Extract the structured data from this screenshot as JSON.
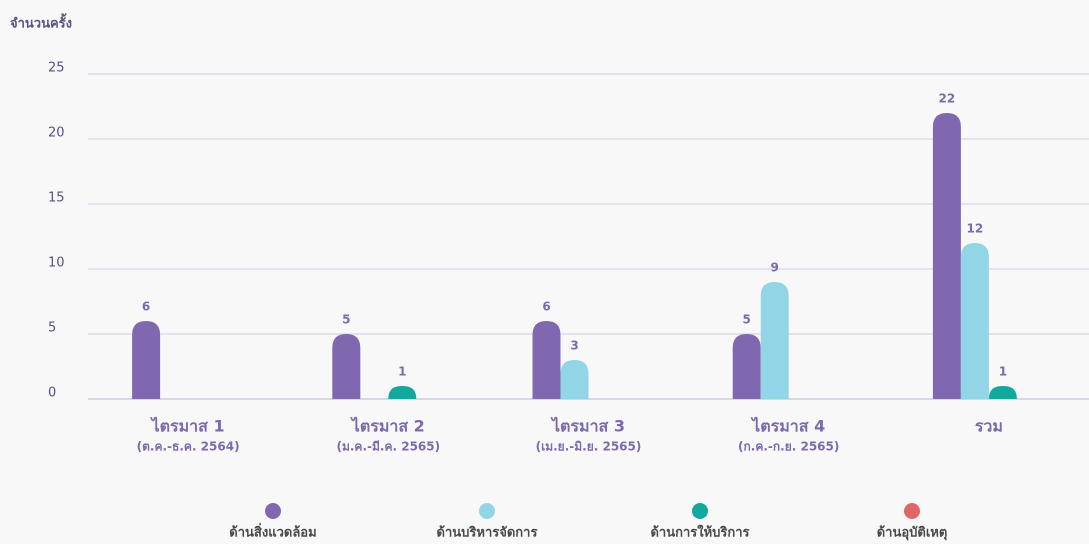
{
  "chart_data": {
    "type": "bar",
    "ylabel": "จำนวนครั้ง",
    "categories": [
      [
        "ไตรมาส 1",
        "(ต.ค.-ธ.ค. 2564)"
      ],
      [
        "ไตรมาส 2",
        "(ม.ค.-มี.ค. 2565)"
      ],
      [
        "ไตรมาส 3",
        "(เม.ย.-มิ.ย. 2565)"
      ],
      [
        "ไตรมาส 4",
        "(ก.ค.-ก.ย. 2565)"
      ],
      [
        "รวม"
      ]
    ],
    "series": [
      {
        "name": "ด้านสิ่งแวดล้อม",
        "color": "#8068b0",
        "values": [
          6,
          5,
          6,
          5,
          22
        ]
      },
      {
        "name": "ด้านบริหารจัดการ",
        "color": "#92d5e6",
        "values": [
          null,
          null,
          3,
          9,
          12
        ]
      },
      {
        "name": "ด้านการให้บริการ",
        "color": "#13a89e",
        "values": [
          null,
          1,
          null,
          null,
          1
        ]
      },
      {
        "name": "ด้านอุบัติเหตุ",
        "color": "#e06666",
        "values": [
          null,
          null,
          null,
          null,
          null
        ]
      }
    ],
    "ylim": [
      0,
      25
    ],
    "yticks": [
      0,
      5,
      10,
      15,
      20,
      25
    ],
    "grid": true,
    "legend": "bottom"
  }
}
